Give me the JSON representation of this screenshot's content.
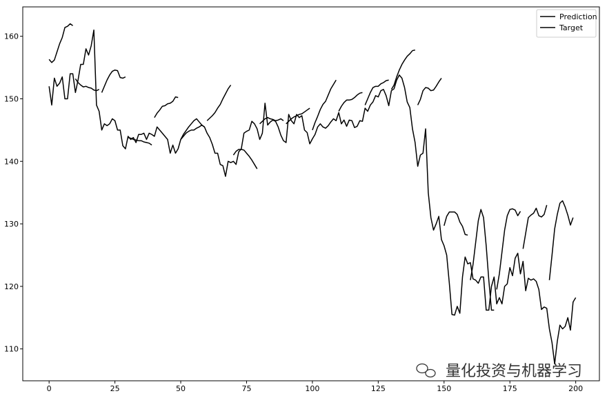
{
  "chart_data": {
    "type": "line",
    "xlim": [
      -10,
      209
    ],
    "ylim": [
      104.9,
      164.7
    ],
    "xticks": [
      0,
      25,
      50,
      75,
      100,
      125,
      150,
      175,
      200
    ],
    "yticks": [
      110,
      120,
      130,
      140,
      150,
      160
    ],
    "legend": "upper right",
    "watermark": "量化投资与机器学习",
    "series": [
      {
        "name": "Prediction",
        "color": "#000000",
        "x": [
          0,
          1,
          2,
          3,
          4,
          5,
          6,
          7,
          8,
          9,
          null,
          10,
          11,
          12,
          13,
          14,
          15,
          16,
          17,
          18,
          19,
          null,
          20,
          21,
          22,
          23,
          24,
          25,
          26,
          27,
          28,
          29,
          null,
          30,
          31,
          32,
          33,
          34,
          35,
          36,
          37,
          38,
          39,
          null,
          40,
          41,
          42,
          43,
          44,
          45,
          46,
          47,
          48,
          49,
          null,
          50,
          51,
          52,
          53,
          54,
          55,
          56,
          57,
          58,
          59,
          null,
          60,
          61,
          62,
          63,
          64,
          65,
          66,
          67,
          68,
          69,
          null,
          70,
          71,
          72,
          73,
          74,
          75,
          76,
          77,
          78,
          79,
          null,
          80,
          81,
          82,
          83,
          84,
          85,
          86,
          87,
          88,
          89,
          null,
          90,
          91,
          92,
          93,
          94,
          95,
          96,
          97,
          98,
          99,
          null,
          100,
          101,
          102,
          103,
          104,
          105,
          106,
          107,
          108,
          109,
          null,
          110,
          111,
          112,
          113,
          114,
          115,
          116,
          117,
          118,
          119,
          null,
          120,
          121,
          122,
          123,
          124,
          125,
          126,
          127,
          128,
          129,
          null,
          130,
          131,
          132,
          133,
          134,
          135,
          136,
          137,
          138,
          139,
          null,
          140,
          141,
          142,
          143,
          144,
          145,
          146,
          147,
          148,
          149,
          null,
          150,
          151,
          152,
          153,
          154,
          155,
          156,
          157,
          158,
          159,
          null,
          160,
          161,
          162,
          163,
          164,
          165,
          166,
          167,
          168,
          169,
          null,
          170,
          171,
          172,
          173,
          174,
          175,
          176,
          177,
          178,
          179,
          null,
          180,
          181,
          182,
          183,
          184,
          185,
          186,
          187,
          188,
          189,
          null,
          190,
          191,
          192,
          193,
          194,
          195,
          196,
          197,
          198,
          199
        ],
        "values": [
          156.3,
          155.8,
          156.2,
          157.5,
          158.8,
          159.8,
          161.4,
          161.6,
          162,
          161.7,
          null,
          153.2,
          152.6,
          152.2,
          151.9,
          152,
          151.8,
          151.7,
          151.4,
          151.3,
          151.5,
          null,
          151,
          152,
          153,
          153.8,
          154.4,
          154.6,
          154.5,
          153.4,
          153.3,
          153.5,
          null,
          143.8,
          143.7,
          143.5,
          143.4,
          143.3,
          143.3,
          143.1,
          143,
          142.9,
          142.6,
          null,
          147,
          147.7,
          148.2,
          148.8,
          148.9,
          149.2,
          149.3,
          149.6,
          150.3,
          150.2,
          null,
          143.5,
          144.3,
          144.9,
          145.5,
          146,
          146.5,
          146.8,
          146.3,
          145.8,
          145.5,
          null,
          146.5,
          146.9,
          147.3,
          147.8,
          148.5,
          149.1,
          150,
          150.8,
          151.6,
          152.2,
          null,
          141,
          141.6,
          141.9,
          141.9,
          141.8,
          141.3,
          140.8,
          140.2,
          139.5,
          138.8,
          null,
          146,
          146.4,
          146.8,
          147,
          146.8,
          146.7,
          146.5,
          146.6,
          146.8,
          146.5,
          null,
          146,
          146.4,
          146.8,
          147.1,
          147.3,
          147.5,
          147.6,
          147.9,
          148.2,
          148.5,
          null,
          145,
          146.2,
          147.2,
          148.3,
          149.1,
          149.6,
          150.6,
          151.6,
          152.3,
          153,
          null,
          148,
          148.8,
          149.4,
          149.8,
          149.8,
          149.9,
          150.2,
          150.6,
          150.9,
          151,
          null,
          149,
          150,
          151,
          151.8,
          152,
          152,
          152.4,
          152.6,
          152.9,
          153,
          null,
          151.5,
          152.2,
          153.5,
          154.6,
          155.5,
          156.2,
          156.8,
          157.2,
          157.7,
          157.8,
          null,
          149,
          149.9,
          151.3,
          151.8,
          151.7,
          151.3,
          151.4,
          152,
          152.7,
          153.3,
          null,
          129.7,
          131.2,
          131.9,
          131.9,
          131.9,
          131.5,
          130.3,
          129.6,
          128.3,
          128.2,
          null,
          121,
          123.5,
          127,
          130.5,
          132.3,
          131,
          126.5,
          121,
          116.2,
          116.2,
          null,
          119.5,
          122,
          125.5,
          129,
          131.3,
          132.3,
          132.4,
          132.2,
          131.3,
          132,
          null,
          126,
          128.5,
          131,
          131.4,
          131.7,
          132.5,
          131.3,
          131.1,
          131.5,
          133,
          null,
          121,
          125,
          129.2,
          131.5,
          133.3,
          133.7,
          132.7,
          131.4,
          129.8,
          131
        ]
      },
      {
        "name": "Target",
        "color": "#000000",
        "x": [
          0,
          1,
          2,
          3,
          4,
          5,
          6,
          7,
          8,
          9,
          10,
          11,
          12,
          13,
          14,
          15,
          16,
          17,
          18,
          19,
          20,
          21,
          22,
          23,
          24,
          25,
          26,
          27,
          28,
          29,
          30,
          31,
          32,
          33,
          34,
          35,
          36,
          37,
          38,
          39,
          40,
          41,
          42,
          43,
          44,
          45,
          46,
          47,
          48,
          49,
          50,
          51,
          52,
          53,
          54,
          55,
          56,
          57,
          58,
          59,
          60,
          61,
          62,
          63,
          64,
          65,
          66,
          67,
          68,
          69,
          70,
          71,
          72,
          73,
          74,
          75,
          76,
          77,
          78,
          79,
          80,
          81,
          82,
          83,
          84,
          85,
          86,
          87,
          88,
          89,
          90,
          91,
          92,
          93,
          94,
          95,
          96,
          97,
          98,
          99,
          100,
          101,
          102,
          103,
          104,
          105,
          106,
          107,
          108,
          109,
          110,
          111,
          112,
          113,
          114,
          115,
          116,
          117,
          118,
          119,
          120,
          121,
          122,
          123,
          124,
          125,
          126,
          127,
          128,
          129,
          130,
          131,
          132,
          133,
          134,
          135,
          136,
          137,
          138,
          139,
          140,
          141,
          142,
          143,
          144,
          145,
          146,
          147,
          148,
          149,
          150,
          151,
          152,
          153,
          154,
          155,
          156,
          157,
          158,
          159,
          160,
          161,
          162,
          163,
          164,
          165,
          166,
          167,
          168,
          169,
          170,
          171,
          172,
          173,
          174,
          175,
          176,
          177,
          178,
          179,
          180,
          181,
          182,
          183,
          184,
          185,
          186,
          187,
          188,
          189,
          190,
          191,
          192,
          193,
          194,
          195,
          196,
          197,
          198,
          199,
          200
        ],
        "values": [
          152,
          149,
          153.3,
          152,
          152.5,
          153.5,
          150,
          150,
          154,
          154,
          151,
          153,
          155.5,
          155.5,
          158,
          157,
          158.5,
          161,
          149,
          148,
          145,
          146,
          145.7,
          146,
          146.8,
          146.5,
          145,
          145,
          142.5,
          142,
          144,
          143.5,
          143.8,
          143,
          144.3,
          144.3,
          144.5,
          143.5,
          144.5,
          144.3,
          144,
          145.5,
          145,
          144.5,
          144,
          143.5,
          141.3,
          142.6,
          141.3,
          142,
          143.5,
          144,
          144.5,
          144.8,
          145,
          145,
          145.3,
          145.5,
          145.8,
          145.5,
          144.5,
          143.8,
          142.7,
          141.3,
          141.3,
          139.5,
          139.3,
          137.6,
          140,
          139.8,
          140,
          139.5,
          141.5,
          142,
          144.5,
          144.8,
          145,
          146.4,
          146,
          145.2,
          143.5,
          144.5,
          149.3,
          145.8,
          146.3,
          146.6,
          146.4,
          145.5,
          144.2,
          143.3,
          143,
          147.5,
          146.5,
          146,
          147.5,
          147,
          147.3,
          145,
          144.6,
          142.8,
          143.6,
          144.3,
          145.5,
          146,
          145.5,
          145.3,
          145.7,
          146.3,
          146.8,
          146.5,
          147.8,
          146,
          146.6,
          145.6,
          146.6,
          146.5,
          145.4,
          145.6,
          146.5,
          146.4,
          148.5,
          148,
          149,
          149.5,
          150.5,
          150.3,
          151.3,
          151.5,
          150.5,
          148.9,
          151.3,
          151.6,
          153,
          153.8,
          153.3,
          151.8,
          149.5,
          148.6,
          145.2,
          143,
          139.2,
          141,
          141.3,
          145.2,
          135,
          131,
          129,
          130,
          131.2,
          127.5,
          126.5,
          125,
          120.5,
          115.5,
          115.4,
          116.8,
          115.7,
          121.5,
          124.7,
          123.6,
          123.8,
          121.2,
          121,
          120.5,
          121.5,
          121.5,
          116.2,
          116.2,
          120,
          121.5,
          117.2,
          118.2,
          117.2,
          120,
          120.4,
          123,
          121.7,
          124.5,
          125.3,
          122,
          124,
          119.3,
          121.3,
          121,
          121.2,
          120.8,
          119.5,
          116.3,
          116.7,
          116.5,
          113.2,
          111,
          107.6,
          111.2,
          113.8,
          113.2,
          113.6,
          115,
          113,
          117.5,
          118.2
        ]
      }
    ]
  }
}
